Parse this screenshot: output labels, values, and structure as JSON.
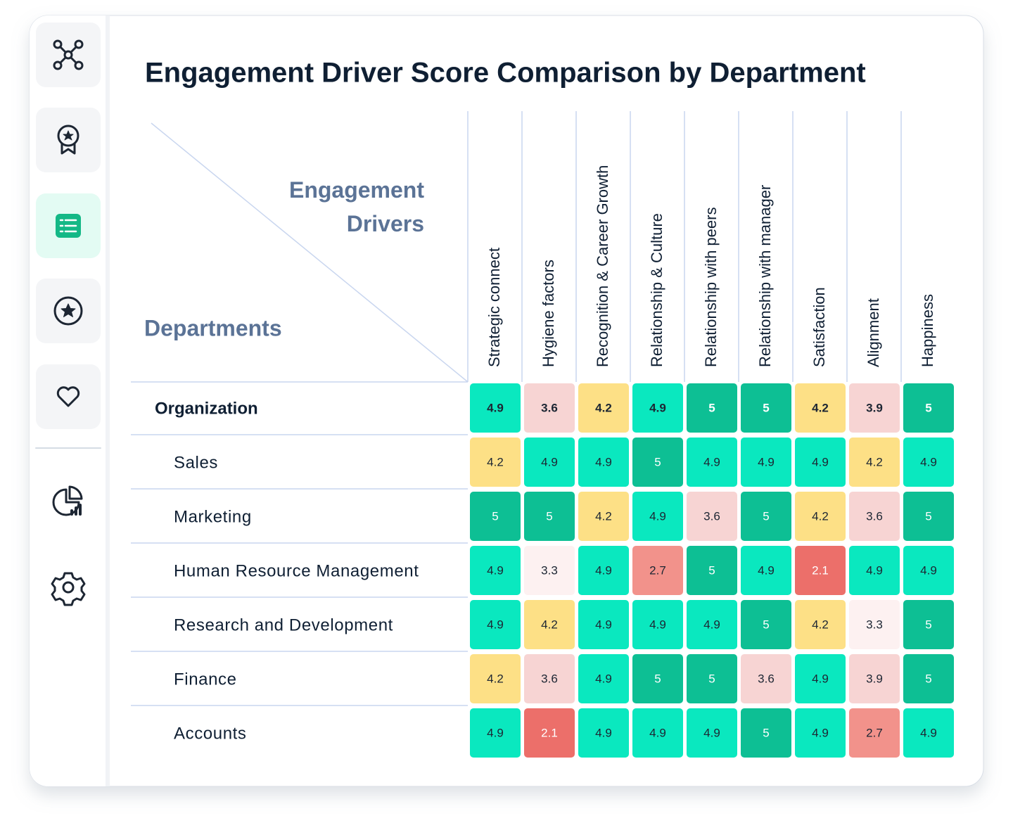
{
  "chart_data": {
    "type": "heatmap",
    "title": "Engagement Driver Score Comparison by Department",
    "x_axis_label": "Engagement Drivers",
    "y_axis_label": "Departments",
    "x_categories": [
      "Strategic connect",
      "Hygiene factors",
      "Recognition & Career Growth",
      "Relationship & Culture",
      "Relationship with peers",
      "Relationship with manager",
      "Satisfaction",
      "Alignment",
      "Happiness"
    ],
    "y_categories": [
      "Organization",
      "Sales",
      "Marketing",
      "Human Resource Management",
      "Research and Development",
      "Finance",
      "Accounts"
    ],
    "values": [
      [
        4.9,
        3.6,
        4.2,
        4.9,
        5,
        5,
        4.2,
        3.9,
        5
      ],
      [
        4.2,
        4.9,
        4.9,
        5,
        4.9,
        4.9,
        4.9,
        4.2,
        4.9
      ],
      [
        5,
        5,
        4.2,
        4.9,
        3.6,
        5,
        4.2,
        3.6,
        5
      ],
      [
        4.9,
        3.3,
        4.9,
        2.7,
        5,
        4.9,
        2.1,
        4.9,
        4.9
      ],
      [
        4.9,
        4.2,
        4.9,
        4.9,
        4.9,
        5,
        4.2,
        3.3,
        5
      ],
      [
        4.2,
        3.6,
        4.9,
        5,
        5,
        3.6,
        4.9,
        3.9,
        5
      ],
      [
        4.9,
        2.1,
        4.9,
        4.9,
        4.9,
        5,
        4.9,
        2.7,
        4.9
      ]
    ],
    "colors": [
      [
        "#0ae8bf",
        "#f7d4d3",
        "#fde086",
        "#0ae8bf",
        "#0dbf94",
        "#0dbf94",
        "#fde086",
        "#f7d4d3",
        "#0dbf94"
      ],
      [
        "#fde086",
        "#0ae8bf",
        "#0ae8bf",
        "#0dbf94",
        "#0ae8bf",
        "#0ae8bf",
        "#0ae8bf",
        "#fde086",
        "#0ae8bf"
      ],
      [
        "#0dbf94",
        "#0dbf94",
        "#fde086",
        "#0ae8bf",
        "#f7d4d3",
        "#0dbf94",
        "#fde086",
        "#f7d4d3",
        "#0dbf94"
      ],
      [
        "#0ae8bf",
        "#fdf1f1",
        "#0ae8bf",
        "#f2928b",
        "#0dbf94",
        "#0ae8bf",
        "#ec6f6a",
        "#0ae8bf",
        "#0ae8bf"
      ],
      [
        "#0ae8bf",
        "#fde086",
        "#0ae8bf",
        "#0ae8bf",
        "#0ae8bf",
        "#0dbf94",
        "#fde086",
        "#fdf1f1",
        "#0dbf94"
      ],
      [
        "#fde086",
        "#f7d4d3",
        "#0ae8bf",
        "#0dbf94",
        "#0dbf94",
        "#f7d4d3",
        "#0ae8bf",
        "#f7d4d3",
        "#0dbf94"
      ],
      [
        "#0ae8bf",
        "#ec6f6a",
        "#0ae8bf",
        "#0ae8bf",
        "#0ae8bf",
        "#0dbf94",
        "#0ae8bf",
        "#f2928b",
        "#0ae8bf"
      ]
    ]
  }
}
